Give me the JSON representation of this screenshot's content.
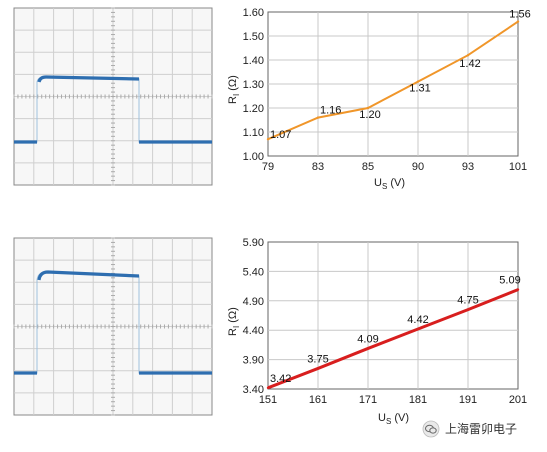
{
  "chart_data": [
    {
      "type": "line",
      "panel": "scope-trace-top",
      "grid": true
    },
    {
      "type": "line",
      "panel": "line-chart-top",
      "categories": [
        "79",
        "83",
        "85",
        "90",
        "93",
        "101"
      ],
      "values": [
        1.07,
        1.16,
        1.2,
        1.31,
        1.42,
        1.56
      ],
      "data_labels": [
        "1.07",
        "1.16",
        "1.20",
        "1.31",
        "1.42",
        "1.56"
      ],
      "yticks": [
        "1.00",
        "1.10",
        "1.20",
        "1.30",
        "1.40",
        "1.50",
        "1.60"
      ],
      "ylim": [
        1.0,
        1.6
      ],
      "xlabel_main": "U",
      "xlabel_sub": "S",
      "xlabel_unit": " (V)",
      "ylabel_main": "R",
      "ylabel_sub": "I",
      "ylabel_unit": " (Ω)",
      "color": "#f0962a",
      "grid": true
    },
    {
      "type": "line",
      "panel": "scope-trace-bottom",
      "grid": true
    },
    {
      "type": "line",
      "panel": "line-chart-bottom",
      "categories": [
        "151",
        "161",
        "171",
        "181",
        "191",
        "201"
      ],
      "values": [
        3.42,
        3.75,
        4.09,
        4.42,
        4.75,
        5.09
      ],
      "data_labels": [
        "3.42",
        "3.75",
        "4.09",
        "4.42",
        "4.75",
        "5.09"
      ],
      "yticks": [
        "3.40",
        "3.90",
        "4.40",
        "4.90",
        "5.40",
        "5.90"
      ],
      "ylim": [
        3.4,
        5.9
      ],
      "xlabel_main": "U",
      "xlabel_sub": "S",
      "xlabel_unit": " (V)",
      "ylabel_main": "R",
      "ylabel_sub": "I",
      "ylabel_unit": " (Ω)",
      "color": "#d81e1e",
      "grid": true
    }
  ],
  "watermark": {
    "icon": "wechat-icon",
    "text": "上海雷卯电子"
  }
}
